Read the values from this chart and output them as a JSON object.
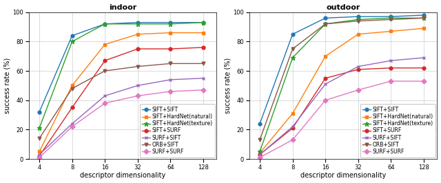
{
  "x": [
    4,
    8,
    16,
    32,
    64,
    128
  ],
  "indoor": {
    "SIFT+SIFT": [
      32,
      84,
      92,
      93,
      93,
      93
    ],
    "SIFT+HardNet(natural)": [
      5,
      50,
      78,
      85,
      86,
      86
    ],
    "SIFT+HardNet(texture)": [
      21,
      80,
      92,
      92,
      92,
      93
    ],
    "SIFT+SURF": [
      2,
      35,
      67,
      75,
      75,
      76
    ],
    "SURF+SIFT": [
      3,
      24,
      43,
      50,
      54,
      55
    ],
    "ORB+SIFT": [
      14,
      48,
      60,
      63,
      65,
      65
    ],
    "SURF+SURF": [
      1,
      22,
      38,
      43,
      46,
      47
    ]
  },
  "outdoor": {
    "SIFT+SIFT": [
      24,
      85,
      96,
      97,
      97,
      98
    ],
    "SIFT+HardNet(natural)": [
      4,
      31,
      70,
      85,
      87,
      89
    ],
    "SIFT+HardNet(texture)": [
      5,
      69,
      92,
      95,
      96,
      96
    ],
    "SIFT+SURF": [
      3,
      21,
      55,
      61,
      62,
      62
    ],
    "SURF+SIFT": [
      3,
      22,
      51,
      63,
      67,
      69
    ],
    "ORB+SIFT": [
      13,
      75,
      92,
      94,
      95,
      96
    ],
    "SURF+SURF": [
      1,
      13,
      40,
      47,
      53,
      53
    ]
  },
  "series_styles": {
    "SIFT+SIFT": {
      "color": "#1f77b4",
      "marker": "o",
      "linestyle": "-"
    },
    "SIFT+HardNet(natural)": {
      "color": "#ff7f0e",
      "marker": "s",
      "linestyle": "-"
    },
    "SIFT+HardNet(texture)": {
      "color": "#2ca02c",
      "marker": "*",
      "linestyle": "-"
    },
    "SIFT+SURF": {
      "color": "#d62728",
      "marker": "o",
      "linestyle": "-"
    },
    "SURF+SIFT": {
      "color": "#9467bd",
      "marker": "x",
      "linestyle": "-"
    },
    "ORB+SIFT": {
      "color": "#8c564b",
      "marker": "v",
      "linestyle": "-"
    },
    "SURF+SURF": {
      "color": "#e377c2",
      "marker": "D",
      "linestyle": "-"
    }
  },
  "ylim": [
    0,
    100
  ],
  "yticks": [
    0,
    20,
    40,
    60,
    80,
    100
  ],
  "xticks": [
    4,
    8,
    16,
    32,
    64,
    128
  ],
  "xlabel": "descriptor dimensionality",
  "ylabel": "success rate (%)",
  "titles": [
    "indoor",
    "outdoor"
  ],
  "legend_fontsize": 5.5,
  "tick_fontsize": 6,
  "axis_fontsize": 7,
  "title_fontsize": 8
}
